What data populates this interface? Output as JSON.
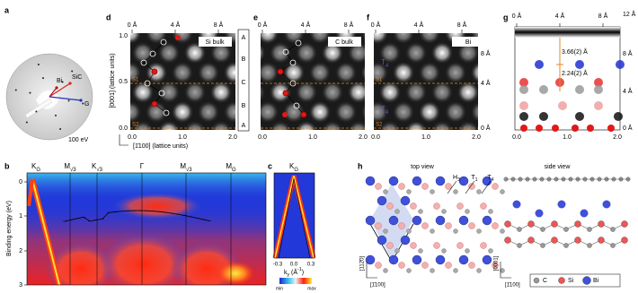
{
  "panel_labels": {
    "a": "a",
    "b": "b",
    "c": "c",
    "d": "d",
    "e": "e",
    "f": "f",
    "g": "g",
    "h": "h"
  },
  "a": {
    "bi": "Bi",
    "sic": "SiC",
    "g": "G",
    "energy": "100 eV"
  },
  "d": {
    "title": "Si bulk",
    "top_ticks": [
      "0 Å",
      "4 Å",
      "8 Å"
    ],
    "y_ticks": [
      "1.0",
      "0.5",
      "0.0"
    ],
    "x_ticks": [
      "0.0",
      "1.0",
      "2.0"
    ],
    "s1": "S1",
    "s2": "S2",
    "stacking": [
      "A",
      "B",
      "C",
      "B",
      "A"
    ],
    "y_label": "[0001] (lattice units)",
    "x_label": "[1̄100] (lattice units)"
  },
  "e": {
    "title": "C bulk",
    "top_ticks": [
      "0 Å",
      "4 Å",
      "8 Å"
    ],
    "x_ticks": [
      "0.0",
      "1.0",
      "2.0"
    ]
  },
  "f": {
    "title": "Bi",
    "top_ticks": [
      "0 Å",
      "4 Å",
      "8 Å"
    ],
    "right_ticks": [
      "8 Å",
      "4 Å",
      "0 Å"
    ],
    "x_ticks": [
      "0.0",
      "1.0",
      "2.0"
    ],
    "s1": "S1",
    "s2": "S2",
    "sites": [
      {
        "main": "T",
        "sub": "4"
      },
      {
        "main": "T",
        "sub": "4"
      }
    ]
  },
  "g": {
    "top_ticks": [
      "0 Å",
      "4 Å",
      "8 Å"
    ],
    "right_ticks": [
      "12 Å",
      "8 Å",
      "4 Å",
      "0 Å"
    ],
    "x_ticks": [
      "0.0",
      "1.0",
      "2.0"
    ],
    "d1": "3.66(2) Å",
    "d2": "2.24(2) Å"
  },
  "b": {
    "y_label": "Binding energy (eV)",
    "y_ticks": [
      "0",
      "1",
      "2",
      "3"
    ],
    "points": [
      {
        "main": "K",
        "sub": "G"
      },
      {
        "main": "M",
        "sub": "√3"
      },
      {
        "main": "K",
        "sub": "√3"
      },
      {
        "main": "Γ"
      },
      {
        "main": "M",
        "sub": "√3"
      },
      {
        "main": "M",
        "sub": "G"
      }
    ]
  },
  "c": {
    "point": {
      "main": "K",
      "sub": "G"
    },
    "x_ticks": [
      "-0.3",
      "0.0",
      "0.3"
    ],
    "x_label": {
      "main": "k",
      "sub": "y",
      "mid": " (Å",
      "sup": "-1",
      "end": ")"
    },
    "min": "min",
    "max": "max"
  },
  "h": {
    "top_view": "top view",
    "side_view": "side view",
    "sites": [
      {
        "main": "H",
        "sub": "3"
      },
      {
        "main": "T",
        "sub": "1"
      },
      {
        "main": "T",
        "sub": "4"
      }
    ],
    "dir_top_up": "[112̄0]",
    "dir_top_left": "[1̄100]",
    "dir_side_up": "[0001]",
    "dir_side_left": "[1̄100]",
    "legend": [
      "C",
      "Si",
      "Bi"
    ]
  }
}
